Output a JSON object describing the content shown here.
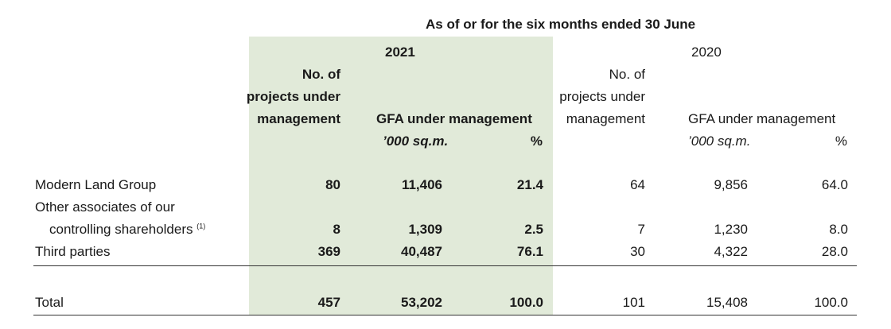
{
  "header": "As of or for the six months ended 30 June",
  "years": {
    "y2021": "2021",
    "y2020": "2020"
  },
  "columns": {
    "projects_line1": "No. of",
    "projects_line2": "projects under",
    "projects_line3": "management",
    "gfa": "GFA under management",
    "unit": "’000 sq.m.",
    "pct": "%"
  },
  "rows": [
    {
      "label": "Modern Land Group",
      "p21": "80",
      "g21": "11,406",
      "pc21": "21.4",
      "p20": "64",
      "g20": "9,856",
      "pc20": "64.0"
    },
    {
      "label_line1": "Other associates of our",
      "label_line2": "controlling shareholders",
      "note": "(1)",
      "p21": "8",
      "g21": "1,309",
      "pc21": "2.5",
      "p20": "7",
      "g20": "1,230",
      "pc20": "8.0"
    },
    {
      "label": "Third parties",
      "p21": "369",
      "g21": "40,487",
      "pc21": "76.1",
      "p20": "30",
      "g20": "4,322",
      "pc20": "28.0"
    }
  ],
  "total": {
    "label": "Total",
    "p21": "457",
    "g21": "53,202",
    "pc21": "100.0",
    "p20": "101",
    "g20": "15,408",
    "pc20": "100.0"
  }
}
